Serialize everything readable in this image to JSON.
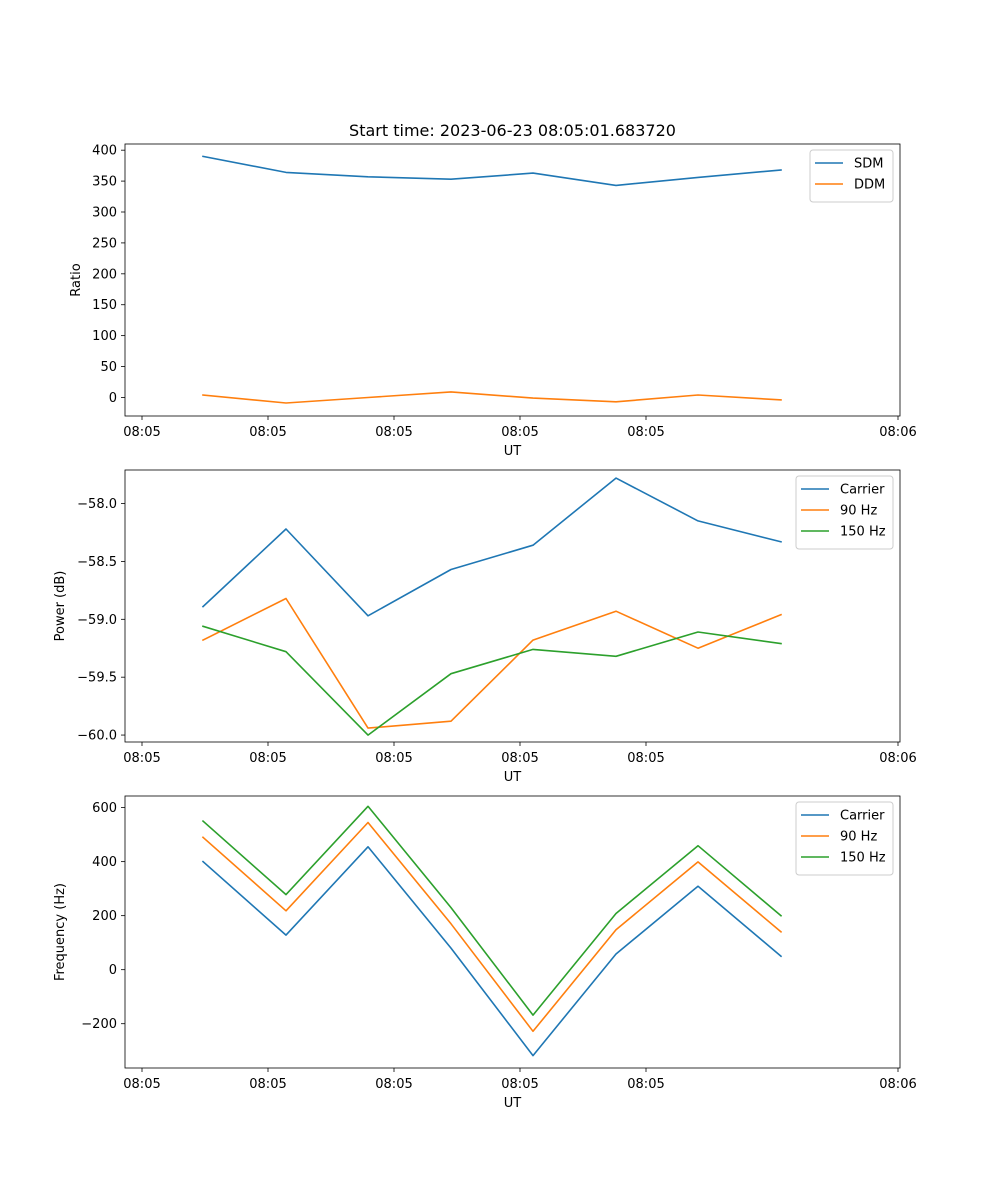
{
  "title": "Start time: 2023-06-23 08:05:01.683720",
  "chart_data": [
    {
      "type": "line",
      "title": "Start time: 2023-06-23 08:05:01.683720",
      "xlabel": "UT",
      "ylabel": "Ratio",
      "x_ticks": [
        "08:05",
        "08:05",
        "08:05",
        "08:05",
        "08:05",
        "08:06"
      ],
      "y_ticks": [
        "0",
        "50",
        "100",
        "150",
        "200",
        "250",
        "300",
        "350",
        "400"
      ],
      "ylim": [
        -30,
        410
      ],
      "grid": false,
      "legend_position": "top-right",
      "series": [
        {
          "name": "SDM",
          "color": "#1f77b4",
          "values": [
            390,
            364,
            357,
            353,
            363,
            343,
            356,
            368
          ]
        },
        {
          "name": "DDM",
          "color": "#ff7f0e",
          "values": [
            4,
            -9,
            0,
            9,
            -1,
            -7,
            4,
            -4
          ]
        }
      ]
    },
    {
      "type": "line",
      "xlabel": "UT",
      "ylabel": "Power (dB)",
      "x_ticks": [
        "08:05",
        "08:05",
        "08:05",
        "08:05",
        "08:05",
        "08:06"
      ],
      "y_ticks": [
        "−60.0",
        "−59.5",
        "−59.0",
        "−58.5",
        "−58.0"
      ],
      "ylim": [
        -60.06,
        -57.71
      ],
      "grid": false,
      "legend_position": "top-right",
      "series": [
        {
          "name": "Carrier",
          "color": "#1f77b4",
          "values": [
            -58.89,
            -58.22,
            -58.97,
            -58.57,
            -58.36,
            -57.78,
            -58.15,
            -58.33
          ]
        },
        {
          "name": "90 Hz",
          "color": "#ff7f0e",
          "values": [
            -59.18,
            -58.82,
            -59.94,
            -59.88,
            -59.18,
            -58.93,
            -59.25,
            -58.96
          ]
        },
        {
          "name": "150 Hz",
          "color": "#2ca02c",
          "values": [
            -59.06,
            -59.28,
            -60.0,
            -59.47,
            -59.26,
            -59.32,
            -59.11,
            -59.21
          ]
        }
      ]
    },
    {
      "type": "line",
      "xlabel": "UT",
      "ylabel": "Frequency (Hz)",
      "x_ticks": [
        "08:05",
        "08:05",
        "08:05",
        "08:05",
        "08:05",
        "08:06"
      ],
      "y_ticks": [
        "−200",
        "0",
        "200",
        "400",
        "600"
      ],
      "ylim": [
        -364,
        643
      ],
      "grid": false,
      "legend_position": "top-right",
      "series": [
        {
          "name": "Carrier",
          "color": "#1f77b4",
          "values": [
            400,
            128,
            455,
            80,
            -318,
            58,
            309,
            50
          ]
        },
        {
          "name": "90 Hz",
          "color": "#ff7f0e",
          "values": [
            490,
            218,
            545,
            170,
            -228,
            148,
            399,
            140
          ]
        },
        {
          "name": "150 Hz",
          "color": "#2ca02c",
          "values": [
            550,
            278,
            605,
            230,
            -168,
            208,
            459,
            200
          ]
        }
      ]
    }
  ]
}
